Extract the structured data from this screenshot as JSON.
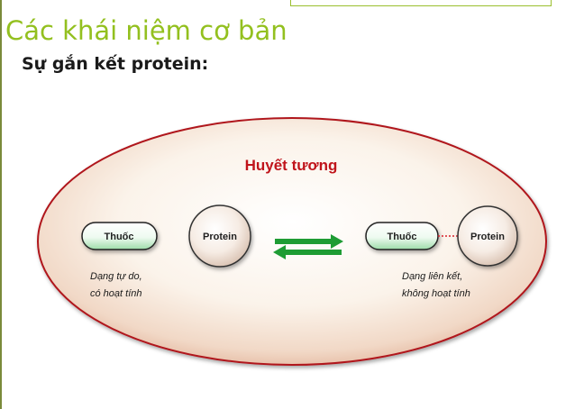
{
  "slide": {
    "title": "Các khái niệm cơ bản",
    "subtitle": "Sự gắn kết protein:"
  },
  "diagram": {
    "region_label": "Huyết tương",
    "left": {
      "drug_label": "Thuốc",
      "protein_label": "Protein",
      "caption_line1": "Dạng tự do,",
      "caption_line2": "có hoạt tính"
    },
    "right": {
      "drug_label": "Thuốc",
      "protein_label": "Protein",
      "caption_line1": "Dạng liên kết,",
      "caption_line2": "không hoạt tính"
    },
    "equilibrium_icon": "double-arrow-equilibrium-icon"
  },
  "colors": {
    "title": "#93c01f",
    "region_label": "#c0141b",
    "ellipse_border": "#b0161c",
    "arrows": "#1e9c34",
    "bond_line": "#d8202a"
  }
}
